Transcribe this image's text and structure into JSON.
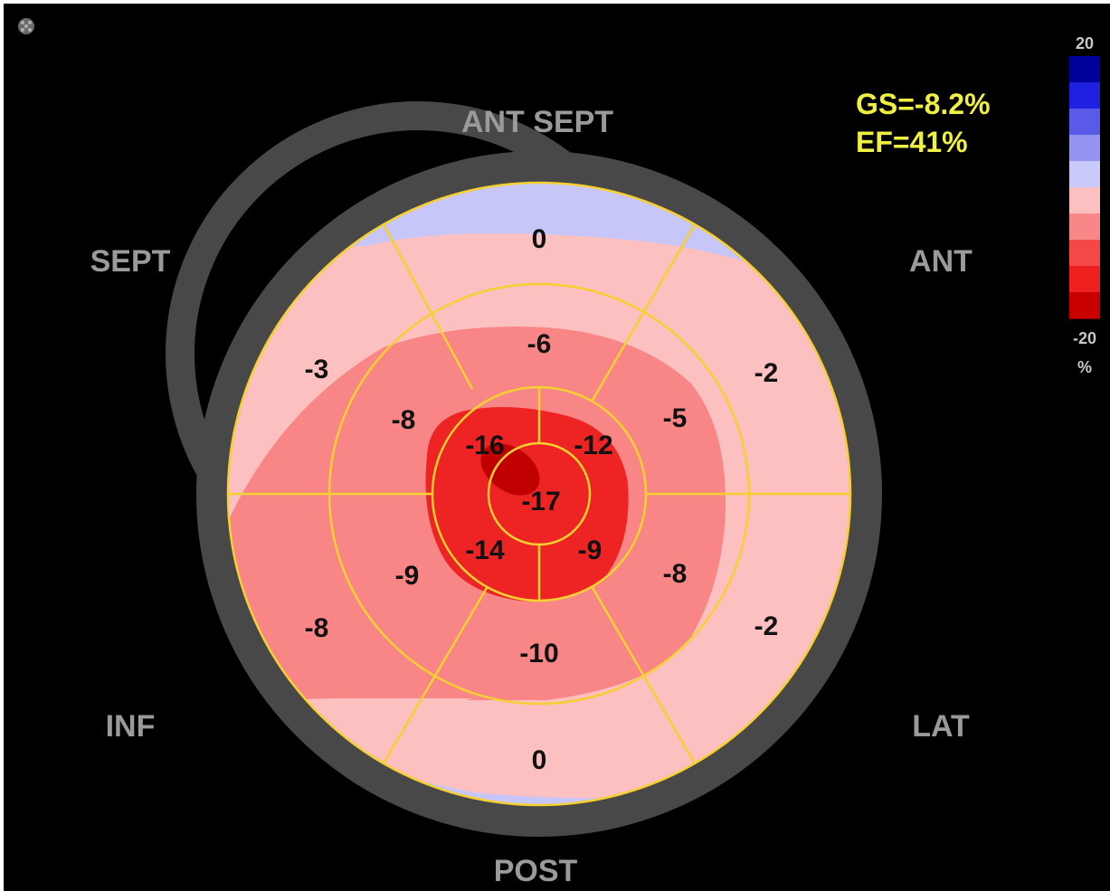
{
  "orientation_labels": {
    "ant_sept": "ANT SEPT",
    "sept": "SEPT",
    "ant": "ANT",
    "inf": "INF",
    "lat": "LAT",
    "post": "POST"
  },
  "metrics": {
    "gs": "GS=-8.2%",
    "ef": "EF=41%"
  },
  "colorbar": {
    "max_label": "20",
    "min_label": "-20",
    "unit": "%",
    "colors": [
      "#00009a",
      "#2020e0",
      "#5a5ae8",
      "#9494f0",
      "#c8c8fa",
      "#fcc0c0",
      "#f88888",
      "#f44848",
      "#ee2020",
      "#c80000"
    ]
  },
  "chart_data": {
    "type": "polar_bullseye",
    "title": "",
    "unit": "%",
    "scale": {
      "min": -20,
      "max": 20
    },
    "global_strain": -8.2,
    "ejection_fraction": 41,
    "rings": [
      {
        "ring": "basal",
        "segments": [
          {
            "wall": "ANT",
            "value": 0
          },
          {
            "wall": "ANT SEPT",
            "value": -2
          },
          {
            "wall": "SEPT",
            "value": -2
          },
          {
            "wall": "INF",
            "value": 0
          },
          {
            "wall": "POST",
            "value": -8
          },
          {
            "wall": "LAT",
            "value": -3
          }
        ]
      },
      {
        "ring": "mid",
        "segments": [
          {
            "wall": "ANT",
            "value": -6
          },
          {
            "wall": "ANT SEPT",
            "value": -5
          },
          {
            "wall": "SEPT",
            "value": -8
          },
          {
            "wall": "INF",
            "value": -10
          },
          {
            "wall": "POST",
            "value": -9
          },
          {
            "wall": "LAT",
            "value": -8
          }
        ]
      },
      {
        "ring": "apical",
        "segments": [
          {
            "wall": "ANT",
            "value": -12
          },
          {
            "wall": "SEPT",
            "value": -9
          },
          {
            "wall": "INF",
            "value": -14
          },
          {
            "wall": "LAT",
            "value": -16
          }
        ]
      },
      {
        "ring": "apex",
        "segments": [
          {
            "wall": "APEX",
            "value": -17
          }
        ]
      }
    ],
    "display_order": {
      "basal": [
        "0",
        "-2",
        "-2",
        "0",
        "-8",
        "-3"
      ],
      "mid": [
        "-6",
        "-5",
        "-8",
        "-10",
        "-9",
        "-8"
      ],
      "apical": [
        "-12",
        "-9",
        "-14",
        "-16"
      ],
      "apex": [
        "-17"
      ]
    }
  }
}
